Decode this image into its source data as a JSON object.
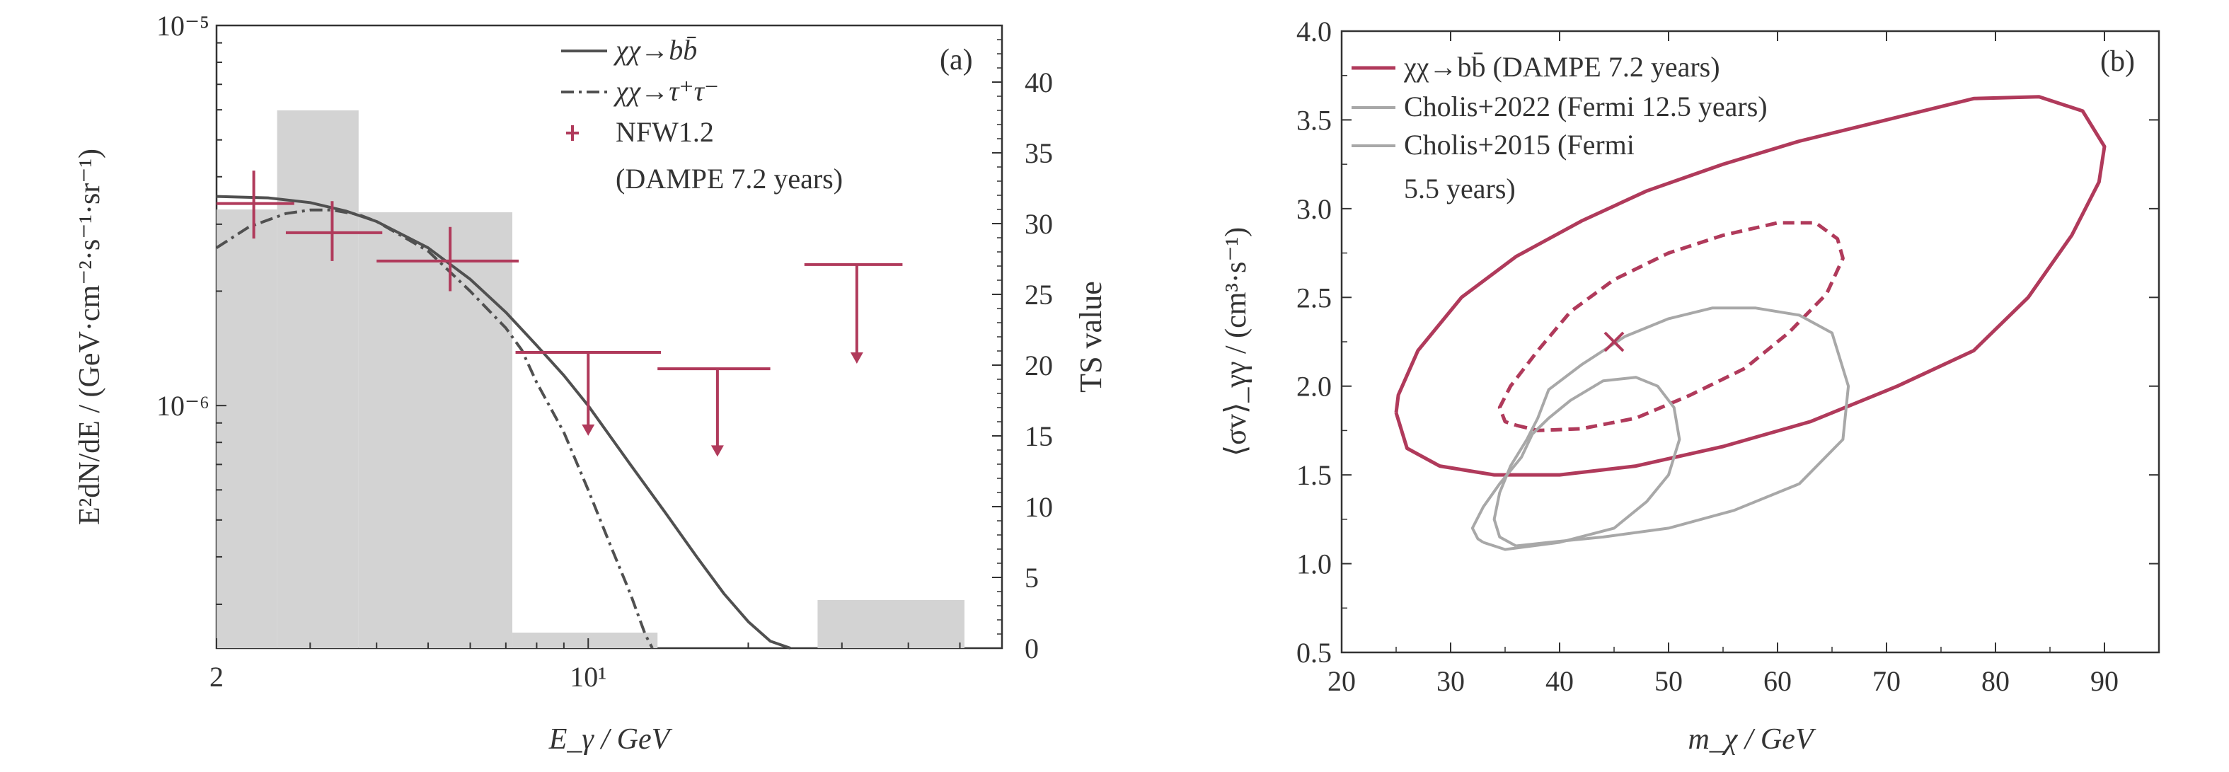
{
  "chart_data": [
    {
      "id": "a",
      "type": "line",
      "panel_label": "(a)",
      "xlabel": "E_γ / GeV",
      "ylabel": "E²dN/dE / (GeV·cm⁻²·s⁻¹·sr⁻¹)",
      "y2label": "TS value",
      "xscale": "log",
      "yscale": "log",
      "xlim": [
        2,
        60
      ],
      "ylim": [
        2.3e-07,
        1e-05
      ],
      "y2lim": [
        0,
        44
      ],
      "xticks": [
        {
          "v": 2,
          "label": "2"
        },
        {
          "v": 10,
          "label": "10¹"
        }
      ],
      "yticks": [
        {
          "v": 1e-06,
          "label": "10⁻⁶"
        },
        {
          "v": 1e-05,
          "label": "10⁻⁵"
        }
      ],
      "y2ticks": [
        0,
        5,
        10,
        15,
        20,
        25,
        30,
        35,
        40
      ],
      "legend": {
        "position": "top-right",
        "entries": [
          {
            "label": "χχ→bb̄",
            "style": "solid"
          },
          {
            "label": "χχ→τ⁺τ⁻",
            "style": "dashdot"
          },
          {
            "label": "NFW1.2",
            "style": "marker"
          },
          {
            "label": "(DAMPE 7.2 years)",
            "style": "none"
          }
        ]
      },
      "ts_bars": [
        {
          "x0": 2.0,
          "x1": 2.6,
          "ts": 31
        },
        {
          "x0": 2.6,
          "x1": 3.7,
          "ts": 38
        },
        {
          "x0": 3.7,
          "x1": 7.2,
          "ts": 30.8
        },
        {
          "x0": 7.2,
          "x1": 13.5,
          "ts": 1.1
        },
        {
          "x0": 13.5,
          "x1": 27,
          "ts": 0
        },
        {
          "x0": 27,
          "x1": 51,
          "ts": 3.4
        }
      ],
      "data_points": [
        {
          "x": 2.35,
          "x0": 2.0,
          "x1": 2.8,
          "y": 3.4e-06,
          "ylo": 2.75e-06,
          "yhi": 4.15e-06
        },
        {
          "x": 3.3,
          "x0": 2.7,
          "x1": 4.1,
          "y": 2.85e-06,
          "ylo": 2.4e-06,
          "yhi": 3.45e-06
        },
        {
          "x": 5.5,
          "x0": 4.0,
          "x1": 7.4,
          "y": 2.4e-06,
          "ylo": 2e-06,
          "yhi": 2.95e-06
        }
      ],
      "upper_limits": [
        {
          "x": 10.0,
          "x0": 7.3,
          "x1": 13.7,
          "y": 1.38e-06,
          "arrow_to": 8.4e-07
        },
        {
          "x": 17.5,
          "x0": 13.5,
          "x1": 22,
          "y": 1.25e-06,
          "arrow_to": 7.4e-07
        },
        {
          "x": 32,
          "x0": 25.5,
          "x1": 39,
          "y": 2.35e-06,
          "arrow_to": 1.3e-06
        }
      ],
      "series": [
        {
          "name": "χχ→bb̄",
          "style": "solid",
          "x": [
            2.0,
            2.5,
            3.0,
            3.5,
            4.0,
            5.0,
            6.0,
            7.0,
            8.0,
            9.0,
            10.0,
            12.0,
            14.0,
            16.0,
            18.0,
            20.0,
            22.0,
            24.0
          ],
          "y": [
            3.55e-06,
            3.52e-06,
            3.42e-06,
            3.25e-06,
            3.05e-06,
            2.6e-06,
            2.15e-06,
            1.76e-06,
            1.44e-06,
            1.2e-06,
            1e-06,
            7e-07,
            5.2e-07,
            4e-07,
            3.2e-07,
            2.7e-07,
            2.4e-07,
            2.2e-07
          ]
        },
        {
          "name": "χχ→τ⁺τ⁻",
          "style": "dashdot",
          "x": [
            2.0,
            2.3,
            2.7,
            3.0,
            3.3,
            3.7,
            4.0,
            5.0,
            6.0,
            7.0,
            7.5,
            8.0,
            9.0,
            10.0,
            11.0,
            12.0,
            12.8,
            13.2
          ],
          "y": [
            2.6e-06,
            2.95e-06,
            3.2e-06,
            3.27e-06,
            3.27e-06,
            3.18e-06,
            3.05e-06,
            2.55e-06,
            2e-06,
            1.6e-06,
            1.4e-06,
            1.15e-06,
            8.5e-07,
            6e-07,
            4.3e-07,
            3.2e-07,
            2.5e-07,
            2.2e-07
          ]
        }
      ]
    },
    {
      "id": "b",
      "type": "line",
      "panel_label": "(b)",
      "xlabel": "m_χ / GeV",
      "ylabel": "⟨σv⟩_γγ / (cm³·s⁻¹)",
      "xlim": [
        20,
        95
      ],
      "ylim": [
        0.5,
        4.0
      ],
      "xticks": [
        20,
        30,
        40,
        50,
        60,
        70,
        80,
        90
      ],
      "yticks": [
        0.5,
        1.0,
        1.5,
        2.0,
        2.5,
        3.0,
        3.5,
        4.0
      ],
      "legend": {
        "position": "top-left",
        "entries": [
          {
            "label": "χχ→bb̄ (DAMPE 7.2 years)",
            "color": "#b03a5b"
          },
          {
            "label": "Cholis+2022 (Fermi 12.5 years)",
            "color": "#a0a0a0"
          },
          {
            "label": "Cholis+2015 (Fermi",
            "color": "#a0a0a0"
          },
          {
            "label": "5.5 years)",
            "color": "none"
          }
        ]
      },
      "best_fit": {
        "x": 45,
        "y": 2.25,
        "marker": "x"
      },
      "series": [
        {
          "name": "χχ→bb̄ (DAMPE 7.2 years)",
          "style": "solid",
          "x": [
            25,
            26,
            29,
            34,
            40,
            47,
            55,
            63,
            71,
            78,
            83,
            87,
            89.5,
            90,
            88,
            84,
            78,
            70,
            62,
            55,
            48,
            42,
            36,
            31,
            27,
            25.2,
            25
          ],
          "y": [
            1.85,
            1.65,
            1.55,
            1.5,
            1.5,
            1.55,
            1.66,
            1.8,
            2.0,
            2.2,
            2.5,
            2.85,
            3.15,
            3.35,
            3.55,
            3.63,
            3.62,
            3.5,
            3.38,
            3.25,
            3.1,
            2.93,
            2.73,
            2.5,
            2.2,
            1.95,
            1.85
          ]
        },
        {
          "name": "",
          "style": "dashed",
          "x": [
            36,
            38,
            42,
            47,
            52,
            57,
            61,
            64.5,
            66,
            65.5,
            63.5,
            60,
            55,
            50,
            45,
            41,
            38,
            35.5,
            34.5,
            35,
            36
          ],
          "y": [
            1.78,
            1.75,
            1.76,
            1.82,
            1.95,
            2.1,
            2.3,
            2.52,
            2.72,
            2.83,
            2.92,
            2.92,
            2.85,
            2.75,
            2.6,
            2.42,
            2.2,
            2.0,
            1.88,
            1.8,
            1.78
          ]
        },
        {
          "name": "Cholis+2022 (Fermi 12.5 years)",
          "style": "solid",
          "x": [
            36,
            39,
            44,
            50,
            56,
            62,
            66,
            66.5,
            65,
            62,
            58,
            54,
            50,
            46,
            42,
            39,
            38,
            37,
            35.5,
            34.5,
            34,
            34.5,
            36
          ],
          "y": [
            1.1,
            1.12,
            1.15,
            1.2,
            1.3,
            1.45,
            1.7,
            2.0,
            2.3,
            2.4,
            2.44,
            2.44,
            2.38,
            2.28,
            2.12,
            1.98,
            1.82,
            1.7,
            1.55,
            1.4,
            1.25,
            1.15,
            1.1
          ]
        },
        {
          "name": "Cholis+2015 (Fermi 5.5 years)",
          "style": "solid",
          "x": [
            33,
            35,
            40,
            45,
            48,
            50,
            51,
            50.5,
            49,
            47,
            44,
            41,
            39,
            37.5,
            36.5,
            34.5,
            33,
            32,
            32.5,
            33
          ],
          "y": [
            1.12,
            1.08,
            1.12,
            1.2,
            1.35,
            1.5,
            1.7,
            1.88,
            2.0,
            2.05,
            2.03,
            1.92,
            1.82,
            1.73,
            1.6,
            1.45,
            1.32,
            1.2,
            1.14,
            1.12
          ]
        }
      ]
    }
  ]
}
